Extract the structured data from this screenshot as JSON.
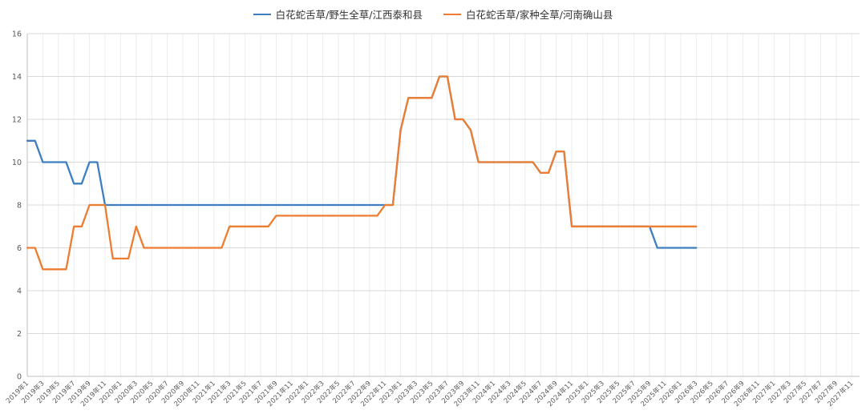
{
  "legend": {
    "items": [
      {
        "label": "白花蛇舌草/野生全草/江西泰和县",
        "color": "#3f7fc1"
      },
      {
        "label": "白花蛇舌草/家种全草/河南确山县",
        "color": "#ed7d31"
      }
    ]
  },
  "chart_data": {
    "type": "line",
    "title": "",
    "xlabel": "",
    "ylabel": "",
    "ylim": [
      0,
      16
    ],
    "y_ticks": [
      0,
      2,
      4,
      6,
      8,
      10,
      12,
      14,
      16
    ],
    "grid": true,
    "legend_position": "top",
    "x_total_points": 108,
    "x_tick_every": 2,
    "x_tick_labels": [
      "2019年1",
      "2019年3",
      "2019年5",
      "2019年7",
      "2019年9",
      "2019年11",
      "2020年1",
      "2020年3",
      "2020年5",
      "2020年7",
      "2020年9",
      "2020年11",
      "2021年1",
      "2021年3",
      "2021年5",
      "2021年7",
      "2021年9",
      "2021年11",
      "2022年1",
      "2022年3",
      "2022年5",
      "2022年7",
      "2022年9",
      "2022年11",
      "2023年1",
      "2023年3",
      "2023年5",
      "2023年7",
      "2023年9",
      "2023年11",
      "2024年1",
      "2024年3",
      "2024年5",
      "2024年7",
      "2024年9",
      "2024年11",
      "2025年1",
      "2025年3",
      "2025年5",
      "2025年7",
      "2025年9",
      "2025年11",
      "2026年1",
      "2026年3",
      "2026年5",
      "2026年7",
      "2026年9",
      "2026年11",
      "2027年1",
      "2027年3",
      "2027年5",
      "2027年7",
      "2027年9",
      "2027年11"
    ],
    "series": [
      {
        "name": "白花蛇舌草/野生全草/江西泰和县",
        "color": "#3f7fc1",
        "values": [
          11,
          11,
          10,
          10,
          10,
          10,
          9,
          9,
          10,
          10,
          8,
          8,
          8,
          8,
          8,
          8,
          8,
          8,
          8,
          8,
          8,
          8,
          8,
          8,
          8,
          8,
          8,
          8,
          8,
          8,
          8,
          8,
          8,
          8,
          8,
          8,
          8,
          8,
          8,
          8,
          8,
          8,
          8,
          8,
          8,
          8,
          8,
          8,
          11.5,
          13,
          13,
          13,
          13,
          14,
          14,
          12,
          12,
          11.5,
          10,
          10,
          10,
          10,
          10,
          10,
          10,
          10,
          9.5,
          9.5,
          10.5,
          10.5,
          7,
          7,
          7,
          7,
          7,
          7,
          7,
          7,
          7,
          7,
          7,
          6,
          6,
          6,
          6,
          6,
          6
        ]
      },
      {
        "name": "白花蛇舌草/家种全草/河南确山县",
        "color": "#ed7d31",
        "values": [
          6,
          6,
          5,
          5,
          5,
          5,
          7,
          7,
          8,
          8,
          8,
          5.5,
          5.5,
          5.5,
          7,
          6,
          6,
          6,
          6,
          6,
          6,
          6,
          6,
          6,
          6,
          6,
          7,
          7,
          7,
          7,
          7,
          7,
          7.5,
          7.5,
          7.5,
          7.5,
          7.5,
          7.5,
          7.5,
          7.5,
          7.5,
          7.5,
          7.5,
          7.5,
          7.5,
          7.5,
          8,
          8,
          11.5,
          13,
          13,
          13,
          13,
          14,
          14,
          12,
          12,
          11.5,
          10,
          10,
          10,
          10,
          10,
          10,
          10,
          10,
          9.5,
          9.5,
          10.5,
          10.5,
          7,
          7,
          7,
          7,
          7,
          7,
          7,
          7,
          7,
          7,
          7,
          7,
          7,
          7,
          7,
          7,
          7
        ]
      }
    ],
    "colors": {
      "gridline_h": "#d9d9d9",
      "gridline_v": "#ececec",
      "axis": "#bfbfbf",
      "tick_text": "#595959"
    }
  }
}
